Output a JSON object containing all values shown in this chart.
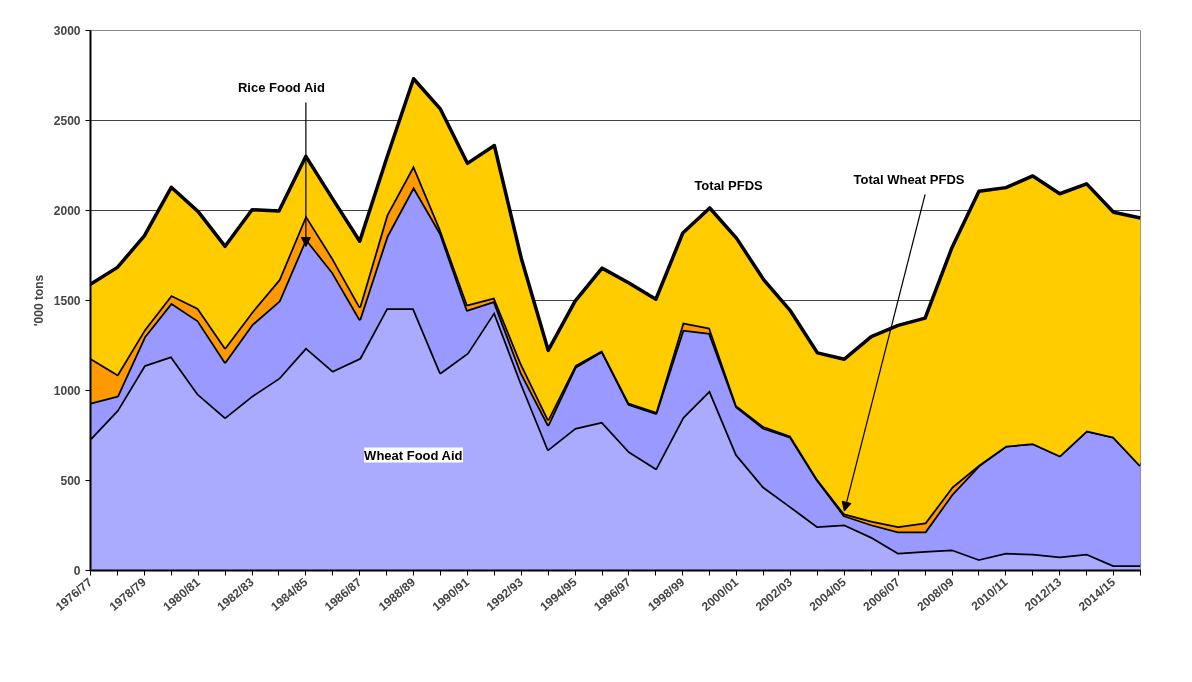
{
  "chart_data": {
    "type": "area",
    "stacked": true,
    "ylabel": "'000 tons",
    "categories": [
      "1976/77",
      null,
      "1978/79",
      null,
      "1980/81",
      null,
      "1982/83",
      null,
      "1984/85",
      null,
      "1986/87",
      null,
      "1988/89",
      null,
      "1990/91",
      null,
      "1992/93",
      null,
      "1994/95",
      null,
      "1996/97",
      null,
      "1998/99",
      null,
      "2000/01",
      null,
      "2002/03",
      null,
      "2004/05",
      null,
      "2006/07",
      null,
      "2008/09",
      null,
      "2010/11",
      null,
      "2012/13",
      null,
      "2014/15",
      null
    ],
    "series": [
      {
        "color": "#aaaaff",
        "values": [
          733,
          892,
          1140,
          1190,
          981,
          852,
          971,
          1070,
          1239,
          1110,
          1180,
          1457,
          1457,
          1100,
          1209,
          1438,
          1042,
          674,
          792,
          826,
          663,
          568,
          852,
          1001,
          644,
          465,
          356,
          246,
          256,
          187,
          98,
          108,
          117,
          63,
          98,
          93,
          78,
          93,
          29,
          29
        ]
      },
      {
        "color": "#9999ff",
        "values": [
          199,
          79,
          159,
          297,
          407,
          308,
          397,
          427,
          606,
          546,
          218,
          398,
          676,
          775,
          239,
          59,
          58,
          138,
          338,
          394,
          262,
          307,
          486,
          318,
          267,
          327,
          387,
          258,
          50,
          69,
          118,
          108,
          308,
          521,
          595,
          614,
          561,
          685,
          714,
          555
        ]
      },
      {
        "color": "#ff9900",
        "values": [
          248,
          119,
          39,
          44,
          69,
          79,
          70,
          119,
          129,
          79,
          70,
          120,
          118,
          19,
          30,
          20,
          50,
          30,
          10,
          3,
          7,
          7,
          40,
          30,
          6,
          10,
          5,
          4,
          10,
          20,
          30,
          50,
          40,
          4,
          0,
          0,
          0,
          0,
          0,
          0
        ]
      },
      {
        "color": "#ffcc00",
        "values": [
          410,
          594,
          521,
          598,
          537,
          562,
          566,
          381,
          327,
          328,
          361,
          315,
          481,
          669,
          784,
          844,
          585,
          381,
          357,
          457,
          665,
          625,
          497,
          665,
          928,
          814,
          694,
          701,
          858,
          1023,
          1116,
          1136,
          1330,
          1519,
          1434,
          1485,
          1454,
          1370,
          1247,
          1374
        ]
      }
    ],
    "ylim": [
      0,
      3000
    ],
    "yticks": [
      0,
      500,
      1000,
      1500,
      2000,
      2500,
      3000
    ],
    "grid": "y",
    "annotations": [
      {
        "text": "Rice Food Aid",
        "x": "1984/85",
        "y": 1800
      },
      "Wheat Food Aid",
      "Total PFDS",
      {
        "text": "Total Wheat PFDS",
        "x": "2004/05",
        "y": 330
      }
    ]
  }
}
